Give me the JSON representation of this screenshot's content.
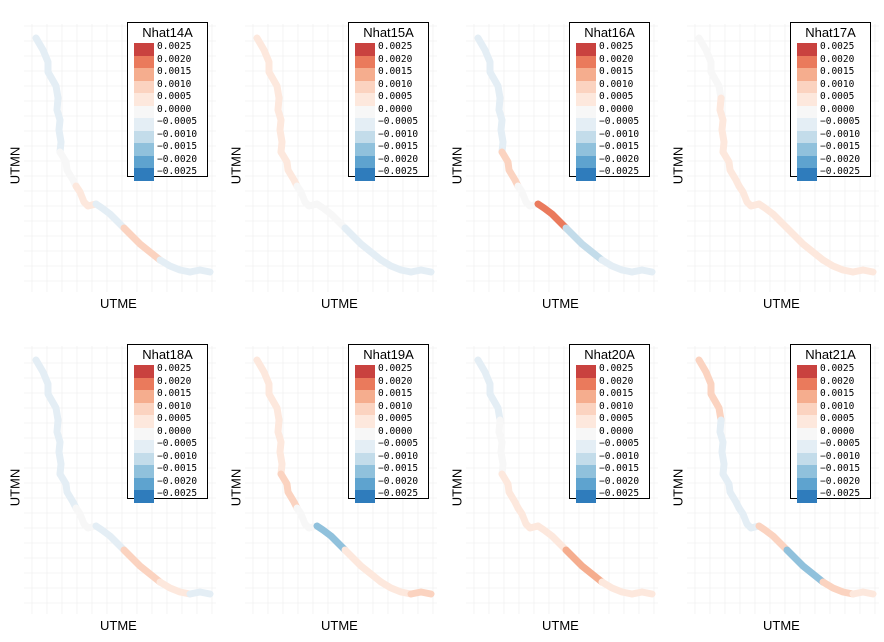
{
  "x_axis_label": "UTME",
  "y_axis_label": "UTMN",
  "legend_breaks": [
    "0.0025",
    "0.0020",
    "0.0015",
    "0.0010",
    "0.0005",
    "0.0000",
    "−0.0005",
    "−0.0010",
    "−0.0015",
    "−0.0020",
    "−0.0025"
  ],
  "legend_colors": [
    "#c9423f",
    "#ea7a5c",
    "#f5ad8e",
    "#fbd3c0",
    "#fde8dd",
    "#f7f7f7",
    "#e4eef5",
    "#c3dcea",
    "#90c1dc",
    "#5ea3cf",
    "#2f7cbc"
  ],
  "chart_data": [
    {
      "type": "heatmap",
      "title": "Nhat14A",
      "segment_values": [
        -0.0005,
        -0.0004,
        0,
        0.0005,
        -0.0003,
        0.0008,
        -0.0003,
        -0.0004
      ]
    },
    {
      "type": "heatmap",
      "title": "Nhat15A",
      "segment_values": [
        0.0004,
        0.0005,
        0.0003,
        0.0002,
        -0.0002,
        -0.0004,
        -0.0003,
        -0.0003
      ]
    },
    {
      "type": "heatmap",
      "title": "Nhat16A",
      "segment_values": [
        -0.0003,
        -0.0003,
        0.001,
        -0.0002,
        0.0022,
        -0.0008,
        -0.0003,
        -0.0003
      ]
    },
    {
      "type": "heatmap",
      "title": "Nhat17A",
      "segment_values": [
        -0.0002,
        0.0006,
        0.0006,
        0.0004,
        0.0006,
        0.0005,
        0.0003,
        0.0004
      ]
    },
    {
      "type": "heatmap",
      "title": "Nhat18A",
      "segment_values": [
        -0.0004,
        -0.0003,
        -0.0004,
        0.0002,
        -0.0003,
        0.0008,
        0.0003,
        -0.0003
      ]
    },
    {
      "type": "heatmap",
      "title": "Nhat19A",
      "segment_values": [
        0.0003,
        0.0004,
        0.0009,
        0.0002,
        -0.0013,
        0.0004,
        0.0003,
        0.0012
      ]
    },
    {
      "type": "heatmap",
      "title": "Nhat20A",
      "segment_values": [
        -0.0003,
        -0.0002,
        0.0004,
        0.0003,
        0.0005,
        0.0014,
        0.0006,
        0.0005
      ]
    },
    {
      "type": "heatmap",
      "title": "Nhat21A",
      "segment_values": [
        0.0012,
        -0.0006,
        -0.0004,
        -0.0003,
        0.0011,
        -0.0014,
        0.0008,
        0.0004
      ]
    }
  ]
}
